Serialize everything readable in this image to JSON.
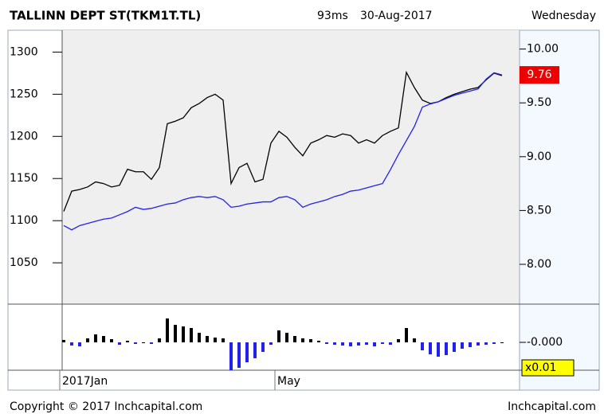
{
  "header": {
    "title": "TALLINN DEPT ST(TKM1T.TL)",
    "latency": "93ms",
    "date": "30-Aug-2017",
    "weekday": "Wednesday"
  },
  "chart_data": [
    {
      "type": "line",
      "categories": [
        "2017Jan",
        null,
        null,
        null,
        null,
        null,
        null,
        null,
        null,
        null,
        null,
        null,
        null,
        null,
        null,
        null,
        null,
        null,
        null,
        null,
        null,
        null,
        null,
        null,
        null,
        null,
        null,
        "May",
        null,
        null,
        null,
        null,
        null,
        null,
        null,
        null,
        null,
        null,
        null,
        null,
        null,
        null,
        null,
        null,
        null,
        null,
        null,
        null,
        null,
        null,
        null,
        null,
        null,
        null,
        null,
        null
      ],
      "series": [
        {
          "color": "#000000",
          "axis": "y",
          "values": [
            1111,
            1135,
            1137,
            1140,
            1146,
            1144,
            1140,
            1142,
            1161,
            1158,
            1158,
            1149,
            1163,
            1215,
            1218,
            1222,
            1234,
            1239,
            1246,
            1250,
            1243,
            1144,
            1163,
            1168,
            1146,
            1149,
            1192,
            1206,
            1199,
            1187,
            1177,
            1192,
            1196,
            1201,
            1199,
            1203,
            1201,
            1192,
            1196,
            1192,
            1201,
            1206,
            1210,
            1276,
            1258,
            1243,
            1239,
            1241,
            1246,
            1250,
            1253,
            1256,
            1258,
            1267,
            1275,
            1272
          ]
        },
        {
          "color": "#2222ee",
          "axis": "y2",
          "values": [
            8.36,
            8.32,
            8.36,
            8.38,
            8.4,
            8.42,
            8.43,
            8.46,
            8.49,
            8.53,
            8.51,
            8.52,
            8.54,
            8.56,
            8.57,
            8.6,
            8.62,
            8.63,
            8.62,
            8.63,
            8.6,
            8.53,
            8.54,
            8.56,
            8.57,
            8.58,
            8.58,
            8.62,
            8.63,
            8.6,
            8.53,
            8.56,
            8.58,
            8.6,
            8.63,
            8.65,
            8.68,
            8.69,
            8.71,
            8.73,
            8.75,
            8.88,
            9.02,
            9.15,
            9.28,
            9.46,
            9.49,
            9.51,
            9.54,
            9.57,
            9.59,
            9.61,
            9.63,
            9.72,
            9.78,
            9.76
          ]
        }
      ],
      "ylim": [
        1001,
        1324
      ],
      "yticks": [
        1050,
        1100,
        1150,
        1200,
        1250,
        1300
      ],
      "y2lim": [
        7.63,
        10.16
      ],
      "y2ticks": [
        {
          "value": 8,
          "label": "8.00"
        },
        {
          "value": 8.5,
          "label": "8.50"
        },
        {
          "value": 9,
          "label": "9.00"
        },
        {
          "value": 9.5,
          "label": "9.50"
        },
        {
          "value": 10,
          "label": "10.00"
        }
      ],
      "annotation": {
        "text": "9.76",
        "value": 9.76,
        "color": "#ee0000"
      }
    },
    {
      "type": "bar",
      "values": [
        0.03,
        -0.04,
        -0.05,
        0.05,
        0.1,
        0.08,
        0.04,
        -0.03,
        0.02,
        -0.02,
        0,
        -0.02,
        0.05,
        0.3,
        0.22,
        0.2,
        0.18,
        0.12,
        0.08,
        0.06,
        0.05,
        -0.35,
        -0.32,
        -0.25,
        -0.2,
        -0.12,
        -0.03,
        0.15,
        0.12,
        0.08,
        0.05,
        0.04,
        0.02,
        -0.02,
        -0.03,
        -0.04,
        -0.05,
        -0.04,
        -0.03,
        -0.05,
        -0.02,
        -0.03,
        0.04,
        0.18,
        0.05,
        -0.1,
        -0.15,
        -0.18,
        -0.16,
        -0.12,
        -0.08,
        -0.06,
        -0.04,
        -0.03,
        -0.02,
        0
      ],
      "ylim": [
        -0.35,
        0.48
      ],
      "yticks": [
        {
          "value": 0,
          "label": "-0.000"
        }
      ],
      "scale_label": "x0.01",
      "up_color": "#000000",
      "down_color": "#2222ee"
    }
  ],
  "footer": {
    "copyright": "Copyright © 2017 Inchcapital.com",
    "site": "Inchcapital.com"
  }
}
